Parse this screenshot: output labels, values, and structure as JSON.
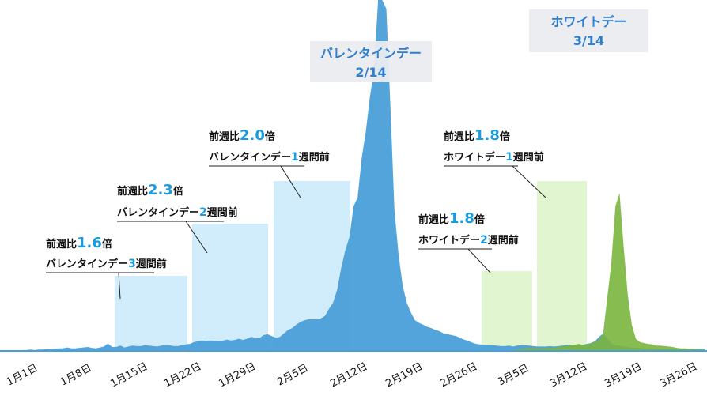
{
  "chart_data": {
    "type": "area",
    "title": "",
    "xlabel": "",
    "ylabel": "",
    "x_ticks": [
      "1月1日",
      "1月8日",
      "1月15日",
      "1月22日",
      "1月29日",
      "2月5日",
      "2月12日",
      "2月19日",
      "2月26日",
      "3月5日",
      "3月12日",
      "3月19日",
      "3月26日"
    ],
    "series": [
      {
        "color": "#4a9fd8",
        "values": [
          2,
          2,
          3,
          2,
          3,
          3,
          4,
          4,
          5,
          6,
          6,
          8,
          6,
          6,
          7,
          8,
          9,
          7,
          6,
          8,
          10,
          17,
          9,
          9,
          12,
          8,
          10,
          12,
          11,
          11,
          13,
          12,
          11,
          10,
          12,
          13,
          13,
          11,
          11,
          13,
          15,
          16,
          20,
          22,
          24,
          22,
          24,
          23,
          22,
          23,
          26,
          24,
          25,
          28,
          25,
          28,
          32,
          30,
          29,
          36,
          38,
          34,
          30,
          32,
          40,
          48,
          52,
          60,
          66,
          70,
          72,
          72,
          72,
          74,
          80,
          96,
          110,
          140,
          190,
          230,
          260,
          330,
          350,
          440,
          500,
          580,
          640,
          800,
          800,
          780,
          560,
          320,
          220,
          150,
          110,
          88,
          70,
          64,
          60,
          55,
          52,
          48,
          45,
          40,
          38,
          36,
          34,
          30,
          26,
          23,
          19,
          16,
          15,
          14,
          14,
          13,
          12,
          11,
          11,
          12,
          10,
          12,
          13,
          13,
          12,
          11,
          10,
          10,
          10,
          11,
          10,
          11,
          12,
          14,
          13,
          12,
          13,
          14,
          16,
          18,
          22,
          32,
          40,
          30,
          18,
          13,
          12,
          10,
          9,
          8,
          7,
          7,
          6,
          6,
          5,
          5,
          5,
          4,
          5,
          5,
          5,
          4,
          4,
          4,
          4,
          5,
          5,
          5
        ]
      },
      {
        "color": "#7ab53e",
        "values": [
          0,
          0,
          0,
          0,
          0,
          0,
          0,
          0,
          0,
          0,
          0,
          0,
          0,
          0,
          0,
          0,
          0,
          0,
          0,
          0,
          0,
          0,
          0,
          0,
          0,
          0,
          0,
          0,
          0,
          0,
          0,
          0,
          0,
          0,
          0,
          0,
          0,
          0,
          0,
          0,
          0,
          0,
          0,
          0,
          0,
          0,
          0,
          0,
          0,
          0,
          0,
          0,
          0,
          0,
          0,
          0,
          0,
          0,
          0,
          0,
          0,
          0,
          0,
          0,
          0,
          0,
          0,
          0,
          0,
          0,
          0,
          0,
          0,
          0,
          0,
          0,
          0,
          0,
          0,
          0,
          0,
          0,
          0,
          0,
          0,
          0,
          0,
          0,
          0,
          0,
          0,
          0,
          0,
          0,
          0,
          0,
          0,
          0,
          0,
          0,
          0,
          0,
          0,
          0,
          0,
          0,
          0,
          0,
          0,
          0,
          0,
          0,
          0,
          0,
          0,
          0,
          0,
          0,
          0,
          0,
          2,
          4,
          5,
          6,
          7,
          8,
          6,
          6,
          7,
          8,
          8,
          9,
          10,
          11,
          12,
          14,
          16,
          14,
          14,
          18,
          20,
          26,
          40,
          120,
          200,
          330,
          360,
          240,
          130,
          60,
          28,
          20,
          18,
          16,
          15,
          12,
          12,
          11,
          10,
          9,
          7,
          6,
          6,
          5,
          5,
          4,
          4,
          4
        ]
      }
    ],
    "annotations": [
      {
        "label_small": "前週比",
        "value": "1.6",
        "unit": "倍",
        "event_prefix": "バレンタインデー",
        "event_num": "3",
        "event_suffix": "週間前"
      },
      {
        "label_small": "前週比",
        "value": "2.3",
        "unit": "倍",
        "event_prefix": "バレンタインデー",
        "event_num": "2",
        "event_suffix": "週間前"
      },
      {
        "label_small": "前週比",
        "value": "2.0",
        "unit": "倍",
        "event_prefix": "バレンタインデー",
        "event_num": "1",
        "event_suffix": "週間前"
      },
      {
        "label_small": "前週比",
        "value": "1.8",
        "unit": "倍",
        "event_prefix": "ホワイトデー",
        "event_num": "2",
        "event_suffix": "週間前"
      },
      {
        "label_small": "前週比",
        "value": "1.8",
        "unit": "倍",
        "event_prefix": "ホワイトデー",
        "event_num": "1",
        "event_suffix": "週間前"
      }
    ],
    "callouts": [
      {
        "title": "バレンタインデー",
        "date": "2/14"
      },
      {
        "title": "ホワイトデー",
        "date": "3/14"
      }
    ]
  }
}
